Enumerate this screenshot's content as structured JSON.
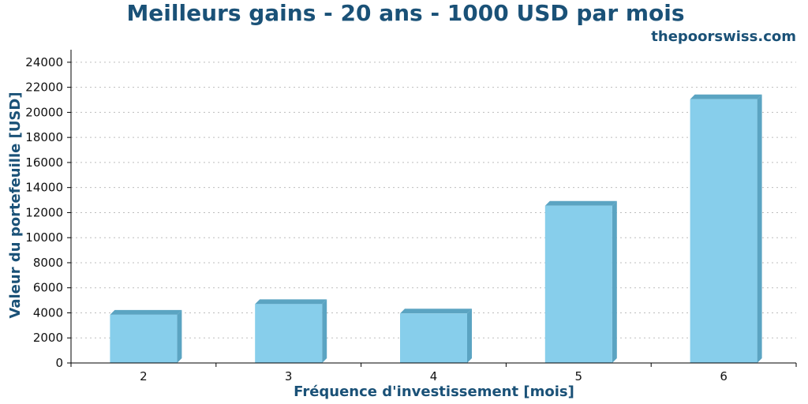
{
  "chart_data": {
    "type": "bar",
    "title": "Meilleurs gains - 20 ans - 1000 USD par mois",
    "subtitle": "thepoorswiss.com",
    "xlabel": "Fréquence d'investissement [mois]",
    "ylabel": "Valeur du portefeuille [USD]",
    "categories": [
      "2",
      "3",
      "4",
      "5",
      "6"
    ],
    "values": [
      3850,
      4700,
      3950,
      12550,
      21050
    ],
    "ylim": [
      0,
      25000
    ],
    "yticks": [
      0,
      2000,
      4000,
      6000,
      8000,
      10000,
      12000,
      14000,
      16000,
      18000,
      20000,
      22000,
      24000
    ],
    "grid": true,
    "colors": {
      "bar": "#87ceeb",
      "bar_shadow": "#5ba4c2",
      "text": "#1a5177"
    }
  }
}
